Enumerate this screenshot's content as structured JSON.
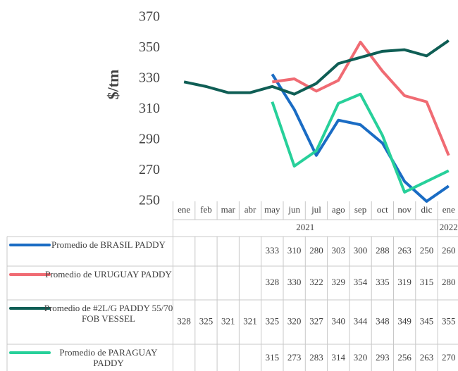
{
  "chart_data": {
    "type": "line",
    "y_label": "$/tm",
    "categories": [
      "ene",
      "feb",
      "mar",
      "abr",
      "may",
      "jun",
      "jul",
      "ago",
      "sep",
      "oct",
      "nov",
      "dic",
      "ene"
    ],
    "year_groups": [
      {
        "label": "2021",
        "count": 12
      },
      {
        "label": "2022",
        "count": 1
      }
    ],
    "ylim": [
      250,
      370
    ],
    "yticks": [
      250,
      270,
      290,
      310,
      330,
      350,
      370
    ],
    "series": [
      {
        "name": "Promedio de BRASIL PADDY",
        "color": "#1a6cc4",
        "values": [
          null,
          null,
          null,
          null,
          333,
          310,
          280,
          303,
          300,
          288,
          263,
          250,
          260
        ]
      },
      {
        "name": "Promedio de URUGUAY PADDY",
        "color": "#f06b73",
        "values": [
          null,
          null,
          null,
          null,
          328,
          330,
          322,
          329,
          354,
          335,
          319,
          315,
          280
        ]
      },
      {
        "name": "Promedio de #2L/G PADDY 55/70 FOB VESSEL",
        "color": "#0f5e55",
        "values": [
          328,
          325,
          321,
          321,
          325,
          320,
          327,
          340,
          344,
          348,
          349,
          345,
          355
        ]
      },
      {
        "name": "Promedio de PARAGUAY PADDY",
        "color": "#27d09a",
        "values": [
          null,
          null,
          null,
          null,
          315,
          273,
          283,
          314,
          320,
          293,
          256,
          263,
          270
        ]
      }
    ]
  }
}
